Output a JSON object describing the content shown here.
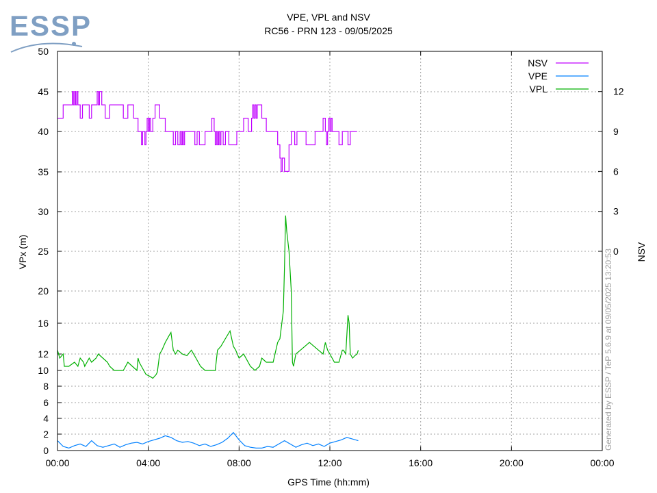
{
  "logo": {
    "text": "ESSP",
    "color": "#7f9fc3"
  },
  "chart_data": {
    "type": "line",
    "title": "VPE, VPL and NSV",
    "subtitle": "RC56 - PRN 123 - 09/05/2025",
    "xlabel": "GPS Time (hh:mm)",
    "ylabel": "VPx (m)",
    "y2label": "NSV",
    "xlim": [
      0,
      24
    ],
    "x_ticks": [
      0,
      4,
      8,
      12,
      16,
      20,
      24
    ],
    "x_tick_labels": [
      "00:00",
      "04:00",
      "08:00",
      "12:00",
      "16:00",
      "20:00",
      "00:00"
    ],
    "y_ticks": [
      0,
      2,
      4,
      6,
      8,
      10,
      12,
      16,
      20,
      25,
      30,
      35,
      40,
      45,
      50
    ],
    "y2_ticks": [
      0,
      3,
      6,
      9,
      12
    ],
    "grid": true,
    "legend_position": "top-right",
    "watermark": "Generated by ESSP / TeP 5.6.9 at 09/05/2025 13:20:53",
    "series": [
      {
        "name": "NSV",
        "axis": "right",
        "color": "#c000ff",
        "step": true,
        "x": [
          0.0,
          0.25,
          0.45,
          0.6,
          0.65,
          0.7,
          0.75,
          0.8,
          0.85,
          0.9,
          1.0,
          1.1,
          1.25,
          1.4,
          1.5,
          1.7,
          1.75,
          1.8,
          1.85,
          1.95,
          2.1,
          2.3,
          2.5,
          2.65,
          2.9,
          3.1,
          3.35,
          3.55,
          3.7,
          3.75,
          3.85,
          3.9,
          3.95,
          4.0,
          4.05,
          4.1,
          4.2,
          4.3,
          4.5,
          4.75,
          5.1,
          5.2,
          5.3,
          5.4,
          5.45,
          5.5,
          5.55,
          5.6,
          5.8,
          5.95,
          6.05,
          6.15,
          6.25,
          6.5,
          6.8,
          6.9,
          6.95,
          7.0,
          7.05,
          7.1,
          7.15,
          7.2,
          7.3,
          7.4,
          7.55,
          7.9,
          8.1,
          8.2,
          8.4,
          8.5,
          8.55,
          8.6,
          8.65,
          8.7,
          8.75,
          8.8,
          9.0,
          9.2,
          9.6,
          9.7,
          9.8,
          9.85,
          9.9,
          10.0,
          10.2,
          10.3,
          10.45,
          10.55,
          10.8,
          10.95,
          11.35,
          11.55,
          11.7,
          11.8,
          11.85,
          11.9,
          11.95,
          12.0,
          12.05,
          12.1,
          12.2,
          12.4,
          12.55,
          12.65,
          12.8,
          12.9,
          13.1,
          13.2
        ],
        "values": [
          10,
          11,
          11,
          11,
          12,
          11,
          12,
          11,
          12,
          11,
          10,
          11,
          11,
          10,
          11,
          11,
          12,
          11,
          12,
          11,
          10,
          11,
          11,
          11,
          10,
          11,
          10,
          9,
          8,
          9,
          8,
          9,
          10,
          9,
          10,
          9,
          10,
          11,
          10,
          9,
          8,
          9,
          8,
          9,
          8,
          9,
          8,
          9,
          9,
          9,
          8,
          9,
          8,
          9,
          10,
          9,
          8,
          9,
          8,
          9,
          8,
          9,
          8,
          9,
          8,
          9,
          9,
          10,
          9,
          9,
          10,
          11,
          10,
          11,
          10,
          11,
          10,
          9,
          9,
          8,
          7,
          6,
          7,
          6,
          8,
          9,
          8,
          9,
          9,
          8,
          9,
          9,
          10,
          9,
          8,
          9,
          10,
          9,
          10,
          9,
          9,
          8,
          9,
          9,
          8,
          9,
          9,
          9
        ]
      },
      {
        "name": "VPE",
        "axis": "left",
        "color": "#0080ff",
        "step": false,
        "x": [
          0.0,
          0.25,
          0.5,
          0.75,
          1.0,
          1.25,
          1.5,
          1.75,
          2.0,
          2.25,
          2.5,
          2.75,
          3.0,
          3.25,
          3.5,
          3.75,
          4.0,
          4.25,
          4.5,
          4.75,
          5.0,
          5.25,
          5.5,
          5.75,
          6.0,
          6.25,
          6.5,
          6.75,
          7.0,
          7.25,
          7.5,
          7.75,
          8.0,
          8.25,
          8.5,
          8.75,
          9.0,
          9.25,
          9.5,
          9.75,
          10.0,
          10.25,
          10.5,
          10.75,
          11.0,
          11.25,
          11.5,
          11.75,
          12.0,
          12.25,
          12.5,
          12.75,
          13.0,
          13.25
        ],
        "values": [
          1.2,
          0.5,
          0.3,
          0.6,
          0.8,
          0.5,
          1.2,
          0.6,
          0.4,
          0.6,
          0.8,
          0.4,
          0.7,
          0.9,
          1.0,
          0.8,
          1.1,
          1.3,
          1.5,
          1.8,
          1.6,
          1.2,
          1.0,
          1.1,
          0.9,
          0.6,
          0.8,
          0.5,
          0.7,
          1.0,
          1.5,
          2.2,
          1.3,
          0.6,
          0.4,
          0.3,
          0.3,
          0.5,
          0.4,
          0.8,
          1.2,
          0.8,
          0.4,
          0.7,
          0.9,
          0.6,
          0.8,
          0.5,
          0.9,
          1.1,
          1.3,
          1.6,
          1.4,
          1.2
        ]
      },
      {
        "name": "VPL",
        "axis": "left",
        "color": "#00b000",
        "step": false,
        "x": [
          0.0,
          0.1,
          0.25,
          0.3,
          0.5,
          0.75,
          0.9,
          1.0,
          1.15,
          1.2,
          1.3,
          1.4,
          1.5,
          1.7,
          1.8,
          2.0,
          2.2,
          2.3,
          2.5,
          2.7,
          2.9,
          3.1,
          3.3,
          3.5,
          3.55,
          3.6,
          3.7,
          3.8,
          3.9,
          4.1,
          4.2,
          4.35,
          4.4,
          4.5,
          4.6,
          4.75,
          4.9,
          5.0,
          5.1,
          5.2,
          5.3,
          5.5,
          5.7,
          5.9,
          6.1,
          6.3,
          6.5,
          6.8,
          6.95,
          7.05,
          7.2,
          7.4,
          7.6,
          7.75,
          7.85,
          8.0,
          8.2,
          8.5,
          8.7,
          8.9,
          9.0,
          9.2,
          9.5,
          9.7,
          9.8,
          9.95,
          10.0,
          10.05,
          10.1,
          10.2,
          10.3,
          10.35,
          10.4,
          10.5,
          10.7,
          10.9,
          11.1,
          11.3,
          11.5,
          11.7,
          11.8,
          11.9,
          12.0,
          12.2,
          12.4,
          12.5,
          12.55,
          12.6,
          12.7,
          12.8,
          12.85,
          12.9,
          13.0,
          13.1,
          13.2,
          13.25
        ],
        "values": [
          12.5,
          11.5,
          12.0,
          10.5,
          10.5,
          11.0,
          10.5,
          11.5,
          11.0,
          10.5,
          11.0,
          11.5,
          11.0,
          11.5,
          12.0,
          11.5,
          11.0,
          10.5,
          10.0,
          10.0,
          10.0,
          11.0,
          10.5,
          10.0,
          11.5,
          11.0,
          10.5,
          10.0,
          9.5,
          9.2,
          9.0,
          9.5,
          9.8,
          12.0,
          12.5,
          13.5,
          14.3,
          14.8,
          12.5,
          12.0,
          12.5,
          12.0,
          11.8,
          12.5,
          11.5,
          10.5,
          10.0,
          10.0,
          10.0,
          12.5,
          13.0,
          14.0,
          15.0,
          13.0,
          12.5,
          11.5,
          12.0,
          10.5,
          10.0,
          10.5,
          11.5,
          11.0,
          11.0,
          13.5,
          14.0,
          17.5,
          23.0,
          29.5,
          27.5,
          25.0,
          20.0,
          11.0,
          10.5,
          12.0,
          12.5,
          13.0,
          13.5,
          13.0,
          12.5,
          12.0,
          13.5,
          12.5,
          12.0,
          11.0,
          11.0,
          12.0,
          12.5,
          12.5,
          12.0,
          17.0,
          16.0,
          12.0,
          11.5,
          11.8,
          12.0,
          12.5
        ]
      }
    ]
  }
}
